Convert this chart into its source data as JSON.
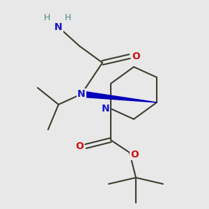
{
  "bg": "#e8e8e8",
  "bc": "#3d3d2e",
  "Nc": "#1414cc",
  "Oc": "#cc1414",
  "Hc": "#4a8888",
  "wc": "#0000bb",
  "figsize": [
    3.0,
    3.0
  ],
  "dpi": 100,
  "xlim": [
    0,
    10
  ],
  "ylim": [
    0,
    10
  ]
}
